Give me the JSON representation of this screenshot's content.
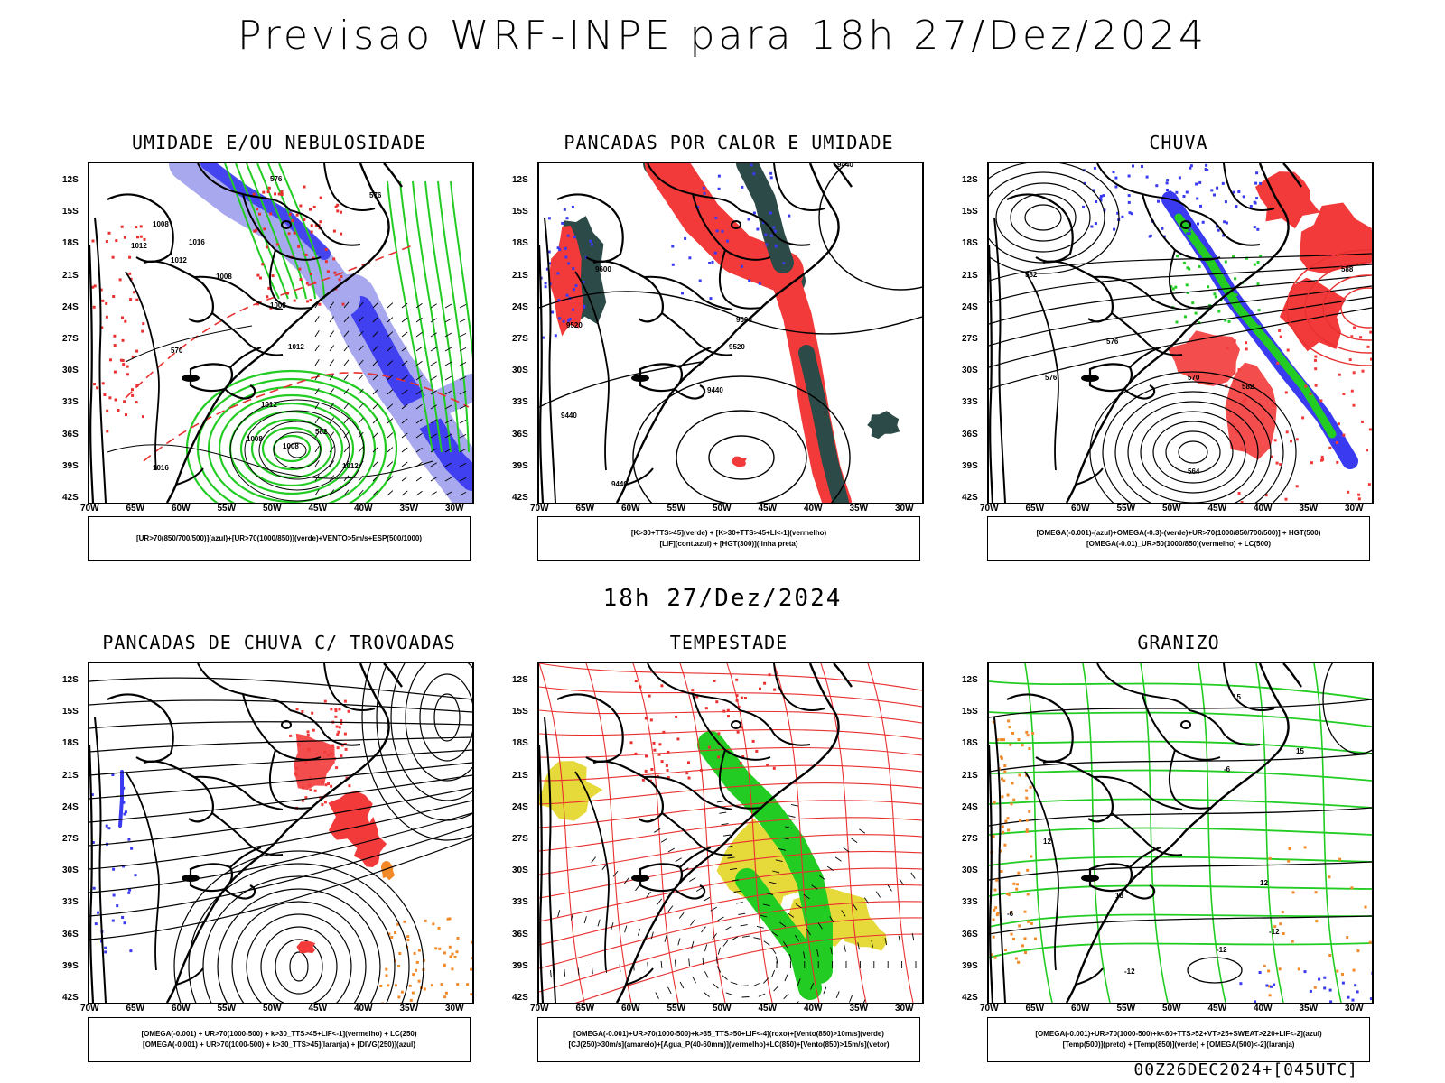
{
  "header": {
    "title": "Previsao WRF-INPE  para 18h 27/Dez/2024",
    "mid_time": "18h 27/Dez/2024",
    "footer": "00Z26DEC2024+[045UTC]"
  },
  "axes": {
    "lat_ticks": [
      "12S",
      "15S",
      "18S",
      "21S",
      "24S",
      "27S",
      "30S",
      "33S",
      "36S",
      "39S",
      "42S"
    ],
    "lon_ticks": [
      "70W",
      "65W",
      "60W",
      "55W",
      "50W",
      "45W",
      "40W",
      "35W",
      "30W"
    ]
  },
  "colors": {
    "blue": "#3a3af0",
    "lightblue": "#a8a8ee",
    "green": "#22cc22",
    "red": "#f23a3a",
    "darkteal": "#2c4a48",
    "orange": "#f28a2a",
    "yellow": "#e6d93a",
    "contour_red": "#e83030"
  },
  "panels": [
    {
      "id": "umidade",
      "title": "UMIDADE E/OU NEBULOSIDADE",
      "legend": [
        "[UR>70(850/700/500)](azul)+[UR>70(1000/850)](verde)+VENTO>5m/s+ESP(500/1000)"
      ],
      "labels": [
        "1008",
        "1012",
        "1012",
        "1008",
        "1008",
        "1012",
        "1016",
        "1012",
        "1008",
        "1012",
        "576",
        "570",
        "582",
        "576",
        "1008",
        "1016"
      ]
    },
    {
      "id": "pancadas_calor",
      "title": "PANCADAS POR CALOR E UMIDADE",
      "legend": [
        "[K>30+TTS>45](verde) + [K>30+TTS>45+LI<-1](vermelho)",
        "[LIF](cont.azul) + [HGT(300)](linha preta)"
      ],
      "labels": [
        "9600",
        "9520",
        "9440",
        "9600",
        "9520",
        "9440",
        "9440",
        "9440"
      ]
    },
    {
      "id": "chuva",
      "title": "CHUVA",
      "legend": [
        "[OMEGA(-0.001)-(azul)+OMEGA(-0.3)-(verde)+UR>70(1000/850/700/500)] + HGT(500)",
        "[OMEGA(-0.01)_UR>50(1000/850)(vermelho) + LC(500)"
      ],
      "labels": [
        "582",
        "576",
        "570",
        "564",
        "582",
        "588",
        "576"
      ]
    },
    {
      "id": "pancadas_trovoadas",
      "title": "PANCADAS DE CHUVA C/ TROVOADAS",
      "legend": [
        "[OMEGA(-0.001) + UR>70(1000-500) + k>30_TTS>45+LIF<-1](vermelho) + LC(250)",
        "[OMEGA(-0.001) + UR>70(1000-500) + k>30_TTS>45](laranja) + [DIVG(250)](azul)"
      ],
      "labels": []
    },
    {
      "id": "tempestade",
      "title": "TEMPESTADE",
      "legend": [
        "[OMEGA(-0.001)+UR>70(1000-500)+k>35_TTS>50+LIF<-4](roxo)+[Vento(850)>10m/s](verde)",
        "[CJ(250)>30m/s](amarelo)+[Agua_P(40-60mm)](vermelho)+LC(850)+[Vento(850)>15m/s](vetor)"
      ],
      "labels": []
    },
    {
      "id": "granizo",
      "title": "GRANIZO",
      "legend": [
        "[OMEGA(-0.001)+UR>70(1000-500)+k<60+TTS>52+VT>25+SWEAT>220+LIF<-2](azul)",
        "[Temp(500)](preto) + [Temp(850)](verde) + [OMEGA(500)<-2](laranja)"
      ],
      "labels": [
        "-6",
        "-12",
        "-12",
        "-12",
        "-6",
        "18",
        "15",
        "12",
        "12",
        "15"
      ]
    }
  ]
}
